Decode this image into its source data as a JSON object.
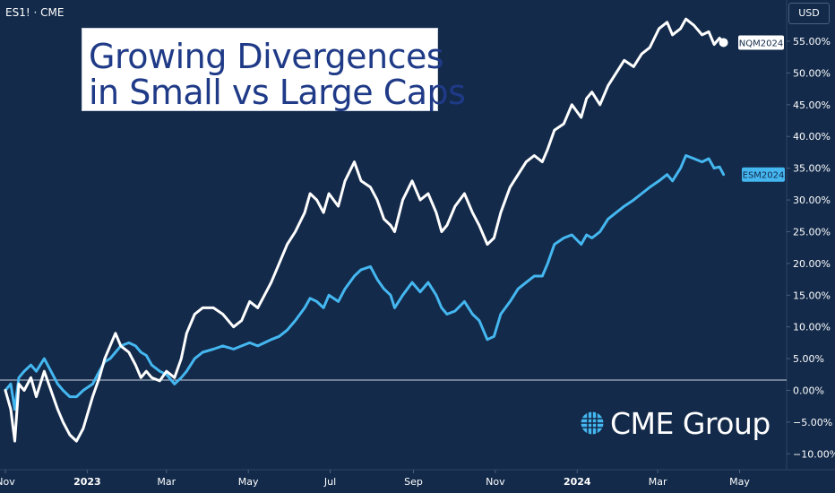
{
  "header": {
    "symbol": "ES1! · CME",
    "currency": "USD"
  },
  "title": {
    "line1": "Growing Divergences",
    "line2": "in Small vs Large Caps"
  },
  "logo": {
    "text": "CME Group",
    "icon": "globe-icon"
  },
  "colors": {
    "background": "#132a4a",
    "nq_series": "#ffffff",
    "es_series": "#45b7f0",
    "zero_line": "#c9d3e0"
  },
  "chart_data": {
    "type": "line",
    "x_type": "date",
    "xlim": [
      "2022-11-01",
      "2024-05-24"
    ],
    "ylim": [
      -12.5,
      61.5
    ],
    "y_ticks": [
      -10,
      -5,
      0,
      5,
      10,
      15,
      20,
      25,
      30,
      35,
      40,
      45,
      50,
      55
    ],
    "y_tick_labels": [
      "−10.00%",
      "−5.00%",
      "0.00%",
      "5.00%",
      "10.00%",
      "15.00%",
      "20.00%",
      "25.00%",
      "30.00%",
      "35.00%",
      "40.00%",
      "45.00%",
      "50.00%",
      "55.00%"
    ],
    "x_ticks": [
      {
        "date": "2022-11-01",
        "label": "Nov",
        "bold": false
      },
      {
        "date": "2023-01-01",
        "label": "2023",
        "bold": true
      },
      {
        "date": "2023-03-01",
        "label": "Mar",
        "bold": false
      },
      {
        "date": "2023-05-01",
        "label": "May",
        "bold": false
      },
      {
        "date": "2023-07-01",
        "label": "Jul",
        "bold": false
      },
      {
        "date": "2023-09-01",
        "label": "Sep",
        "bold": false
      },
      {
        "date": "2023-11-01",
        "label": "Nov",
        "bold": false
      },
      {
        "date": "2024-01-01",
        "label": "2024",
        "bold": true
      },
      {
        "date": "2024-03-01",
        "label": "Mar",
        "bold": false
      },
      {
        "date": "2024-05-01",
        "label": "May",
        "bold": false
      }
    ],
    "zero_line": 0,
    "series": [
      {
        "name": "NQM2024",
        "color": "#ffffff",
        "end_marker": true,
        "points": [
          [
            "2022-11-01",
            0
          ],
          [
            "2022-11-05",
            -3
          ],
          [
            "2022-11-08",
            -8
          ],
          [
            "2022-11-11",
            1
          ],
          [
            "2022-11-15",
            0
          ],
          [
            "2022-11-20",
            2
          ],
          [
            "2022-11-24",
            -1
          ],
          [
            "2022-11-30",
            3
          ],
          [
            "2022-12-05",
            0
          ],
          [
            "2022-12-10",
            -3
          ],
          [
            "2022-12-14",
            -5
          ],
          [
            "2022-12-19",
            -7
          ],
          [
            "2022-12-24",
            -8
          ],
          [
            "2022-12-29",
            -6
          ],
          [
            "2023-01-05",
            -1
          ],
          [
            "2023-01-10",
            2
          ],
          [
            "2023-01-14",
            5
          ],
          [
            "2023-01-18",
            7
          ],
          [
            "2023-01-22",
            9
          ],
          [
            "2023-01-26",
            7
          ],
          [
            "2023-02-01",
            6
          ],
          [
            "2023-02-06",
            4
          ],
          [
            "2023-02-10",
            2
          ],
          [
            "2023-02-14",
            3
          ],
          [
            "2023-02-18",
            2
          ],
          [
            "2023-02-24",
            1.5
          ],
          [
            "2023-03-01",
            3
          ],
          [
            "2023-03-07",
            2
          ],
          [
            "2023-03-12",
            5
          ],
          [
            "2023-03-16",
            9
          ],
          [
            "2023-03-22",
            12
          ],
          [
            "2023-03-28",
            13
          ],
          [
            "2023-04-05",
            13
          ],
          [
            "2023-04-12",
            12
          ],
          [
            "2023-04-20",
            10
          ],
          [
            "2023-04-26",
            11
          ],
          [
            "2023-05-02",
            14
          ],
          [
            "2023-05-08",
            13
          ],
          [
            "2023-05-13",
            15
          ],
          [
            "2023-05-18",
            17
          ],
          [
            "2023-05-24",
            20
          ],
          [
            "2023-05-30",
            23
          ],
          [
            "2023-06-05",
            25
          ],
          [
            "2023-06-12",
            28
          ],
          [
            "2023-06-16",
            31
          ],
          [
            "2023-06-21",
            30
          ],
          [
            "2023-06-26",
            28
          ],
          [
            "2023-06-30",
            31
          ],
          [
            "2023-07-07",
            29
          ],
          [
            "2023-07-12",
            33
          ],
          [
            "2023-07-19",
            36
          ],
          [
            "2023-07-24",
            33
          ],
          [
            "2023-07-31",
            32
          ],
          [
            "2023-08-05",
            30
          ],
          [
            "2023-08-10",
            27
          ],
          [
            "2023-08-15",
            26
          ],
          [
            "2023-08-18",
            25
          ],
          [
            "2023-08-24",
            30
          ],
          [
            "2023-08-31",
            33
          ],
          [
            "2023-09-06",
            30
          ],
          [
            "2023-09-12",
            31
          ],
          [
            "2023-09-18",
            28
          ],
          [
            "2023-09-22",
            25
          ],
          [
            "2023-09-26",
            26
          ],
          [
            "2023-10-02",
            29
          ],
          [
            "2023-10-09",
            31
          ],
          [
            "2023-10-15",
            28
          ],
          [
            "2023-10-20",
            26
          ],
          [
            "2023-10-26",
            23
          ],
          [
            "2023-10-31",
            24
          ],
          [
            "2023-11-05",
            28
          ],
          [
            "2023-11-12",
            32
          ],
          [
            "2023-11-18",
            34
          ],
          [
            "2023-11-24",
            36
          ],
          [
            "2023-11-30",
            37
          ],
          [
            "2023-12-06",
            36
          ],
          [
            "2023-12-10",
            38
          ],
          [
            "2023-12-15",
            41
          ],
          [
            "2023-12-22",
            42
          ],
          [
            "2023-12-28",
            45
          ],
          [
            "2024-01-04",
            43
          ],
          [
            "2024-01-08",
            46
          ],
          [
            "2024-01-12",
            47
          ],
          [
            "2024-01-18",
            45
          ],
          [
            "2024-01-24",
            48
          ],
          [
            "2024-01-30",
            50
          ],
          [
            "2024-02-05",
            52
          ],
          [
            "2024-02-12",
            51
          ],
          [
            "2024-02-18",
            53
          ],
          [
            "2024-02-24",
            54
          ],
          [
            "2024-03-02",
            57
          ],
          [
            "2024-03-08",
            58
          ],
          [
            "2024-03-12",
            56
          ],
          [
            "2024-03-18",
            57
          ],
          [
            "2024-03-22",
            58.5
          ],
          [
            "2024-03-28",
            57.5
          ],
          [
            "2024-04-03",
            56
          ],
          [
            "2024-04-08",
            56.5
          ],
          [
            "2024-04-12",
            54.5
          ],
          [
            "2024-04-16",
            55.5
          ],
          [
            "2024-04-19",
            54.8
          ]
        ]
      },
      {
        "name": "ESM2024",
        "color": "#45b7f0",
        "end_marker": false,
        "points": [
          [
            "2022-11-01",
            0
          ],
          [
            "2022-11-05",
            1
          ],
          [
            "2022-11-08",
            -3
          ],
          [
            "2022-11-11",
            2
          ],
          [
            "2022-11-15",
            3
          ],
          [
            "2022-11-20",
            4
          ],
          [
            "2022-11-24",
            3
          ],
          [
            "2022-11-30",
            5
          ],
          [
            "2022-12-05",
            3
          ],
          [
            "2022-12-10",
            1
          ],
          [
            "2022-12-14",
            0
          ],
          [
            "2022-12-19",
            -1
          ],
          [
            "2022-12-24",
            -1
          ],
          [
            "2022-12-29",
            0
          ],
          [
            "2023-01-05",
            1
          ],
          [
            "2023-01-10",
            3
          ],
          [
            "2023-01-14",
            4.5
          ],
          [
            "2023-01-18",
            5
          ],
          [
            "2023-01-22",
            6
          ],
          [
            "2023-01-26",
            7
          ],
          [
            "2023-02-01",
            7.5
          ],
          [
            "2023-02-06",
            7
          ],
          [
            "2023-02-10",
            6
          ],
          [
            "2023-02-14",
            5.5
          ],
          [
            "2023-02-18",
            4
          ],
          [
            "2023-02-24",
            3
          ],
          [
            "2023-03-01",
            2.5
          ],
          [
            "2023-03-07",
            1
          ],
          [
            "2023-03-12",
            2
          ],
          [
            "2023-03-16",
            3
          ],
          [
            "2023-03-22",
            5
          ],
          [
            "2023-03-28",
            6
          ],
          [
            "2023-04-05",
            6.5
          ],
          [
            "2023-04-12",
            7
          ],
          [
            "2023-04-20",
            6.5
          ],
          [
            "2023-04-26",
            7
          ],
          [
            "2023-05-02",
            7.5
          ],
          [
            "2023-05-08",
            7
          ],
          [
            "2023-05-13",
            7.5
          ],
          [
            "2023-05-18",
            8
          ],
          [
            "2023-05-24",
            8.5
          ],
          [
            "2023-05-30",
            9.5
          ],
          [
            "2023-06-05",
            11
          ],
          [
            "2023-06-12",
            13
          ],
          [
            "2023-06-16",
            14.5
          ],
          [
            "2023-06-21",
            14
          ],
          [
            "2023-06-26",
            13
          ],
          [
            "2023-06-30",
            15
          ],
          [
            "2023-07-07",
            14
          ],
          [
            "2023-07-12",
            16
          ],
          [
            "2023-07-19",
            18
          ],
          [
            "2023-07-24",
            19
          ],
          [
            "2023-07-31",
            19.5
          ],
          [
            "2023-08-05",
            17.5
          ],
          [
            "2023-08-10",
            16
          ],
          [
            "2023-08-15",
            15
          ],
          [
            "2023-08-18",
            13
          ],
          [
            "2023-08-24",
            15
          ],
          [
            "2023-08-31",
            17
          ],
          [
            "2023-09-06",
            15.5
          ],
          [
            "2023-09-12",
            17
          ],
          [
            "2023-09-18",
            15
          ],
          [
            "2023-09-22",
            13
          ],
          [
            "2023-09-26",
            12
          ],
          [
            "2023-10-02",
            12.5
          ],
          [
            "2023-10-09",
            14
          ],
          [
            "2023-10-15",
            12
          ],
          [
            "2023-10-20",
            11
          ],
          [
            "2023-10-26",
            8
          ],
          [
            "2023-10-31",
            8.5
          ],
          [
            "2023-11-05",
            12
          ],
          [
            "2023-11-12",
            14
          ],
          [
            "2023-11-18",
            16
          ],
          [
            "2023-11-24",
            17
          ],
          [
            "2023-11-30",
            18
          ],
          [
            "2023-12-06",
            18
          ],
          [
            "2023-12-10",
            20
          ],
          [
            "2023-12-15",
            23
          ],
          [
            "2023-12-22",
            24
          ],
          [
            "2023-12-28",
            24.5
          ],
          [
            "2024-01-04",
            23
          ],
          [
            "2024-01-08",
            24.5
          ],
          [
            "2024-01-12",
            24
          ],
          [
            "2024-01-18",
            25
          ],
          [
            "2024-01-24",
            27
          ],
          [
            "2024-01-30",
            28
          ],
          [
            "2024-02-05",
            29
          ],
          [
            "2024-02-12",
            30
          ],
          [
            "2024-02-18",
            31
          ],
          [
            "2024-02-24",
            32
          ],
          [
            "2024-03-02",
            33
          ],
          [
            "2024-03-08",
            34
          ],
          [
            "2024-03-12",
            33
          ],
          [
            "2024-03-18",
            35
          ],
          [
            "2024-03-22",
            37
          ],
          [
            "2024-03-28",
            36.5
          ],
          [
            "2024-04-03",
            36
          ],
          [
            "2024-04-08",
            36.5
          ],
          [
            "2024-04-12",
            35
          ],
          [
            "2024-04-16",
            35.2
          ],
          [
            "2024-04-19",
            34
          ]
        ]
      }
    ]
  }
}
